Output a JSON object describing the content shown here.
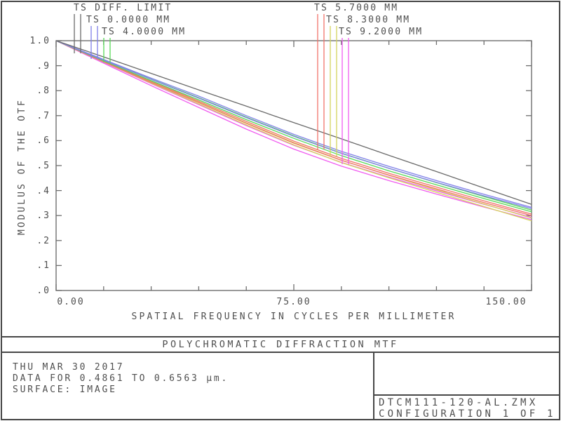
{
  "chart_data": {
    "type": "line",
    "title": "POLYCHROMATIC DIFFRACTION MTF",
    "xlabel": "SPATIAL FREQUENCY IN CYCLES PER MILLIMETER",
    "ylabel": "MODULUS OF THE OTF",
    "xlim": [
      0,
      150
    ],
    "ylim": [
      0.0,
      1.0
    ],
    "grid": false,
    "legend_position": "top",
    "xticks": {
      "labels": [
        "0.00",
        "75.00",
        "150.00"
      ],
      "values": [
        0,
        75,
        150
      ]
    },
    "x_minor_step": 15,
    "yticks": {
      "labels": [
        "1.0",
        ".9",
        ".8",
        ".7",
        ".6",
        ".5",
        ".4",
        ".3",
        ".2",
        ".1",
        ".0"
      ],
      "values": [
        1.0,
        0.9,
        0.8,
        0.7,
        0.6,
        0.5,
        0.4,
        0.3,
        0.2,
        0.1,
        0.0
      ]
    },
    "x": [
      0,
      15,
      30,
      45,
      60,
      75,
      90,
      105,
      120,
      135,
      150
    ],
    "series": [
      {
        "name": "TS DIFF. LIMIT",
        "color": "#6a6a6a",
        "values": [
          1.0,
          0.935,
          0.869,
          0.803,
          0.738,
          0.672,
          0.607,
          0.541,
          0.476,
          0.41,
          0.345
        ]
      },
      {
        "name": "T 0.0000 MM",
        "color": "#8080e8",
        "values": [
          1.0,
          0.925,
          0.85,
          0.778,
          0.7,
          0.625,
          0.557,
          0.497,
          0.44,
          0.385,
          0.333
        ]
      },
      {
        "name": "S 0.0000 MM",
        "color": "#8080e8",
        "values": [
          1.0,
          0.922,
          0.845,
          0.77,
          0.692,
          0.617,
          0.549,
          0.489,
          0.433,
          0.379,
          0.328
        ]
      },
      {
        "name": "T 4.0000 MM",
        "color": "#58d858",
        "values": [
          1.0,
          0.922,
          0.846,
          0.772,
          0.694,
          0.619,
          0.55,
          0.489,
          0.432,
          0.376,
          0.322
        ]
      },
      {
        "name": "S 4.0000 MM",
        "color": "#58d858",
        "values": [
          1.0,
          0.919,
          0.84,
          0.763,
          0.684,
          0.609,
          0.54,
          0.479,
          0.423,
          0.368,
          0.315
        ]
      },
      {
        "name": "T 5.7000 MM",
        "color": "#f0736a",
        "values": [
          1.0,
          0.918,
          0.838,
          0.758,
          0.677,
          0.598,
          0.529,
          0.469,
          0.414,
          0.359,
          0.306
        ]
      },
      {
        "name": "S 5.7000 MM",
        "color": "#f0736a",
        "values": [
          1.0,
          0.916,
          0.833,
          0.752,
          0.669,
          0.59,
          0.521,
          0.462,
          0.407,
          0.352,
          0.3
        ]
      },
      {
        "name": "T 8.3000 MM",
        "color": "#d4d45c",
        "values": [
          1.0,
          0.917,
          0.835,
          0.754,
          0.671,
          0.592,
          0.522,
          0.461,
          0.403,
          0.346,
          0.29
        ]
      },
      {
        "name": "S 8.3000 MM",
        "color": "#d4d45c",
        "values": [
          1.0,
          0.915,
          0.83,
          0.747,
          0.663,
          0.583,
          0.512,
          0.451,
          0.393,
          0.336,
          0.279
        ]
      },
      {
        "name": "T 9.2000 MM",
        "color": "#f05cf0",
        "values": [
          1.0,
          0.914,
          0.828,
          0.744,
          0.66,
          0.581,
          0.513,
          0.454,
          0.399,
          0.345,
          0.293
        ]
      },
      {
        "name": "S 9.2000 MM",
        "color": "#f05cf0",
        "values": [
          1.0,
          0.91,
          0.82,
          0.733,
          0.646,
          0.566,
          0.498,
          0.44,
          0.386,
          0.334,
          0.284
        ]
      }
    ],
    "legend": [
      {
        "label": "TS DIFF. LIMIT",
        "color": "#6a6a6a"
      },
      {
        "label": "TS 0.0000 MM",
        "color": "#8080e8"
      },
      {
        "label": "TS 4.0000 MM",
        "color": "#58d858"
      },
      {
        "label": "TS 5.7000 MM",
        "color": "#f0736a"
      },
      {
        "label": "TS 8.3000 MM",
        "color": "#d4d45c"
      },
      {
        "label": "TS 9.2000 MM",
        "color": "#f05cf0"
      }
    ]
  },
  "footer": {
    "title": "POLYCHROMATIC DIFFRACTION MTF",
    "date": "THU MAR 30 2017",
    "data_range": "DATA FOR 0.4861 TO 0.6563 µm.",
    "surface": "SURFACE: IMAGE",
    "file_name": "DTCM111-120-AL.ZMX",
    "configuration": "CONFIGURATION 1 OF 1"
  },
  "colors": {
    "frame": "#6e6e6e",
    "text": "#4f4f4f",
    "border": "#474747"
  }
}
